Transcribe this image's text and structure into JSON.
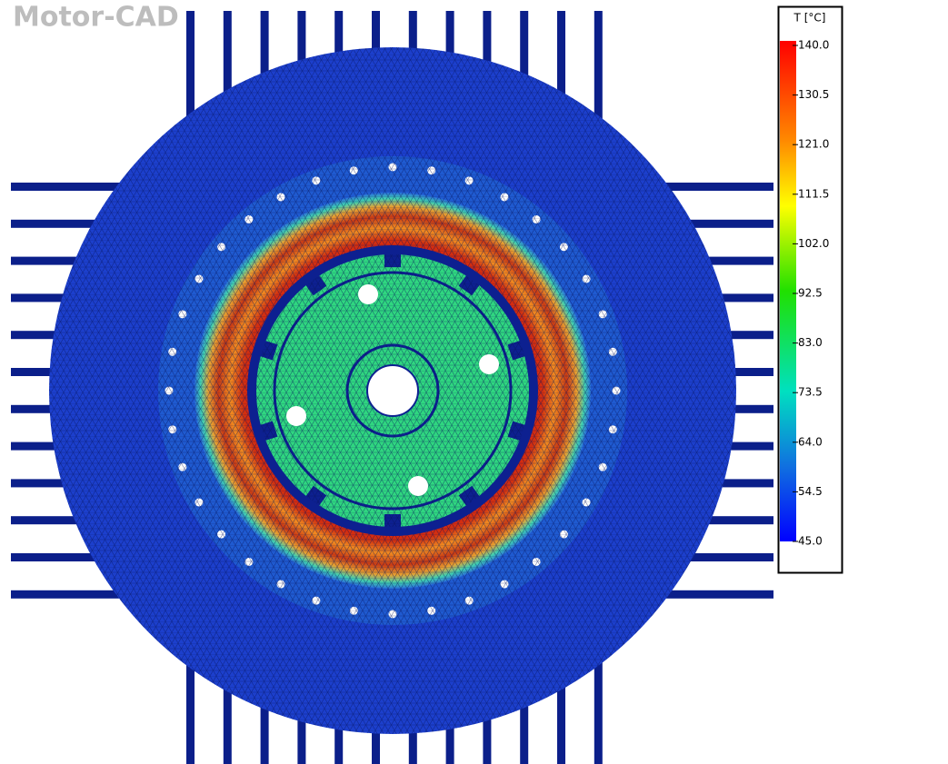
{
  "watermark": "Motor-CAD",
  "legend": {
    "title": "T [°C]",
    "ticks": [
      {
        "value": 140,
        "label": "140.0"
      },
      {
        "value": 130.5,
        "label": "130.5"
      },
      {
        "value": 121,
        "label": "121.0"
      },
      {
        "value": 111.5,
        "label": "111.5"
      },
      {
        "value": 102,
        "label": "102.0"
      },
      {
        "value": 92.5,
        "label": "92.5"
      },
      {
        "value": 83,
        "label": "83.0"
      },
      {
        "value": 73.5,
        "label": "73.5"
      },
      {
        "value": 64,
        "label": "64.0"
      },
      {
        "value": 54.5,
        "label": "54.5"
      },
      {
        "value": 45,
        "label": "45.0"
      }
    ]
  }
}
